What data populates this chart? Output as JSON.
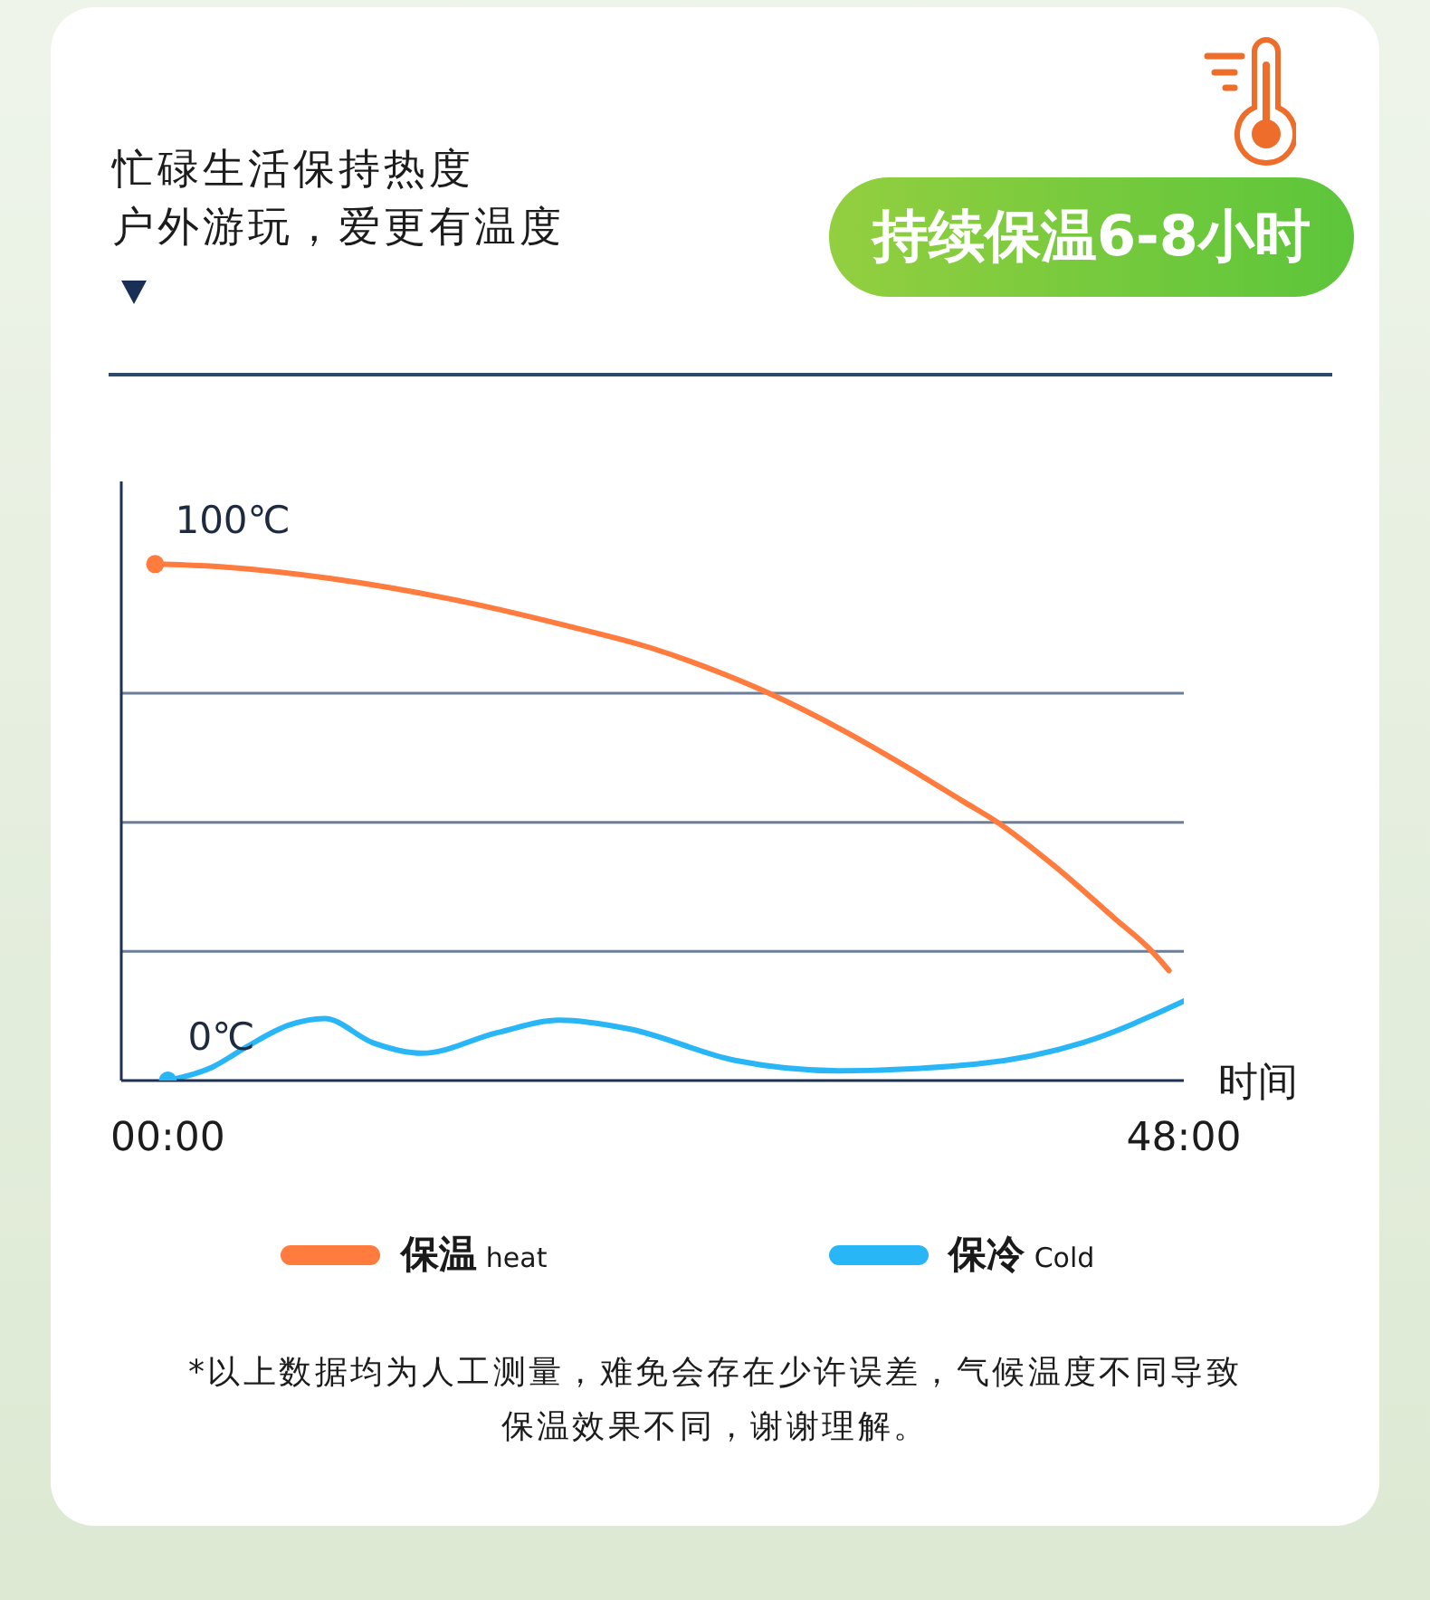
{
  "chart_data": {
    "type": "line",
    "title": "忙碌生活保持热度",
    "subtitle": "户外游玩，爱更有温度",
    "xlabel": "时间",
    "annotations": [
      "持续保温6-8小时",
      "*以上数据均为人工测量，难免会存在少许误差，气候温度不同导致保温效果不同，谢谢理解。"
    ],
    "series": [
      {
        "name": "保温 heat",
        "color": "#ff7b3e",
        "x": [
          -0.6,
          2.0,
          7.7,
          13.4,
          19.1,
          22.8,
          26.2,
          28.4,
          31.9,
          34.8,
          37.6,
          39.2,
          41.9,
          44.7,
          46.5,
          47.3
        ],
        "values": [
          100,
          99.6,
          97.2,
          93.2,
          87.8,
          83.8,
          78.8,
          75,
          67.8,
          61,
          54,
          50,
          41.5,
          31.5,
          25,
          21.3
        ],
        "value_labels": [
          "100℃",
          null,
          null,
          null,
          null,
          null,
          null,
          null,
          null,
          null,
          null,
          null,
          null,
          null,
          null,
          null
        ]
      },
      {
        "name": "保冷 Cold",
        "color": "#29b6f6",
        "x": [
          0,
          2.1,
          3.75,
          5.7,
          7.4,
          9.7,
          12.0,
          15.6,
          18.5,
          21.8,
          26.8,
          31.7,
          38.2,
          43.2,
          48.0
        ],
        "values": [
          0,
          2.6,
          6.6,
          10.7,
          12,
          7.3,
          5.3,
          9.3,
          11.7,
          10,
          3.9,
          1.9,
          3.2,
          7.3,
          15.4
        ],
        "value_labels": [
          "0℃",
          null,
          null,
          null,
          null,
          null,
          null,
          null,
          null,
          null,
          null,
          null,
          null,
          null,
          null
        ]
      }
    ],
    "xlim": [
      -2.2,
      48
    ],
    "xticks": [
      {
        "value": 0,
        "label": "00:00"
      },
      {
        "value": 48,
        "label": "48:00"
      }
    ],
    "ylim": [
      0,
      116
    ],
    "yticks": [
      {
        "value": 25,
        "label": null
      },
      {
        "value": 50,
        "label": null
      },
      {
        "value": 75,
        "label": null
      }
    ],
    "grid": "y",
    "legend": "bottom",
    "tick_labels": "x",
    "line_style": "solid"
  }
}
